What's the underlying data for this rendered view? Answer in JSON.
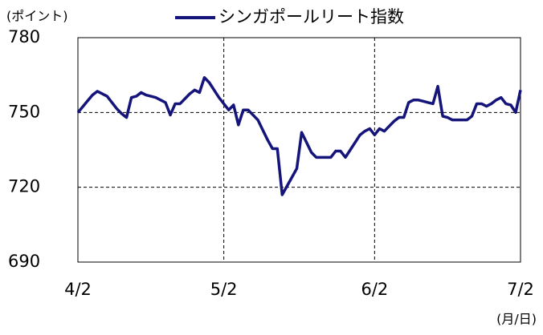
{
  "chart_data": {
    "type": "line",
    "y_unit_label": "(ポイント)",
    "x_unit_label": "(月/日)",
    "categories": [
      "4/2",
      null,
      null,
      null,
      null,
      null,
      null,
      null,
      null,
      null,
      null,
      null,
      null,
      null,
      null,
      null,
      null,
      null,
      null,
      null,
      null,
      null,
      null,
      null,
      null,
      null,
      null,
      null,
      null,
      null,
      "5/2",
      null,
      null,
      null,
      null,
      null,
      null,
      null,
      null,
      null,
      null,
      null,
      null,
      null,
      null,
      null,
      null,
      null,
      null,
      null,
      null,
      null,
      null,
      null,
      null,
      null,
      null,
      null,
      null,
      null,
      null,
      "6/2",
      null,
      null,
      null,
      null,
      null,
      null,
      null,
      null,
      null,
      null,
      null,
      null,
      null,
      null,
      null,
      null,
      null,
      null,
      null,
      null,
      null,
      null,
      null,
      null,
      null,
      null,
      null,
      null,
      null,
      "7/2"
    ],
    "series": [
      {
        "name": "シンガポールリート指数",
        "color": "#14147a",
        "values": [
          750,
          752.3,
          754.7,
          757,
          758.5,
          757.5,
          756.5,
          754,
          751.5,
          749.5,
          748,
          756,
          756.5,
          758,
          757,
          756.5,
          756,
          755,
          754,
          749,
          753.5,
          753.5,
          755.5,
          757.5,
          759,
          758,
          764,
          762,
          759,
          756,
          753.5,
          751,
          753,
          745,
          751,
          751,
          749,
          747,
          743,
          739,
          735.5,
          735.5,
          717,
          720.5,
          724,
          727.5,
          742,
          738,
          734,
          732,
          732,
          732,
          732,
          734.5,
          734.5,
          732,
          735,
          738,
          741,
          742.5,
          743.5,
          741,
          743.5,
          742.5,
          744.5,
          746.5,
          748,
          748,
          754,
          755,
          755,
          754.5,
          754,
          753.5,
          760.5,
          748.5,
          748,
          747,
          747,
          747,
          747,
          748.5,
          753.5,
          753.5,
          752.5,
          753.5,
          755,
          756,
          753.5,
          753,
          750,
          759
        ]
      }
    ],
    "ylim": [
      690,
      780
    ],
    "yticks": [
      690,
      720,
      750,
      780
    ],
    "grid": true,
    "legend": "top"
  }
}
